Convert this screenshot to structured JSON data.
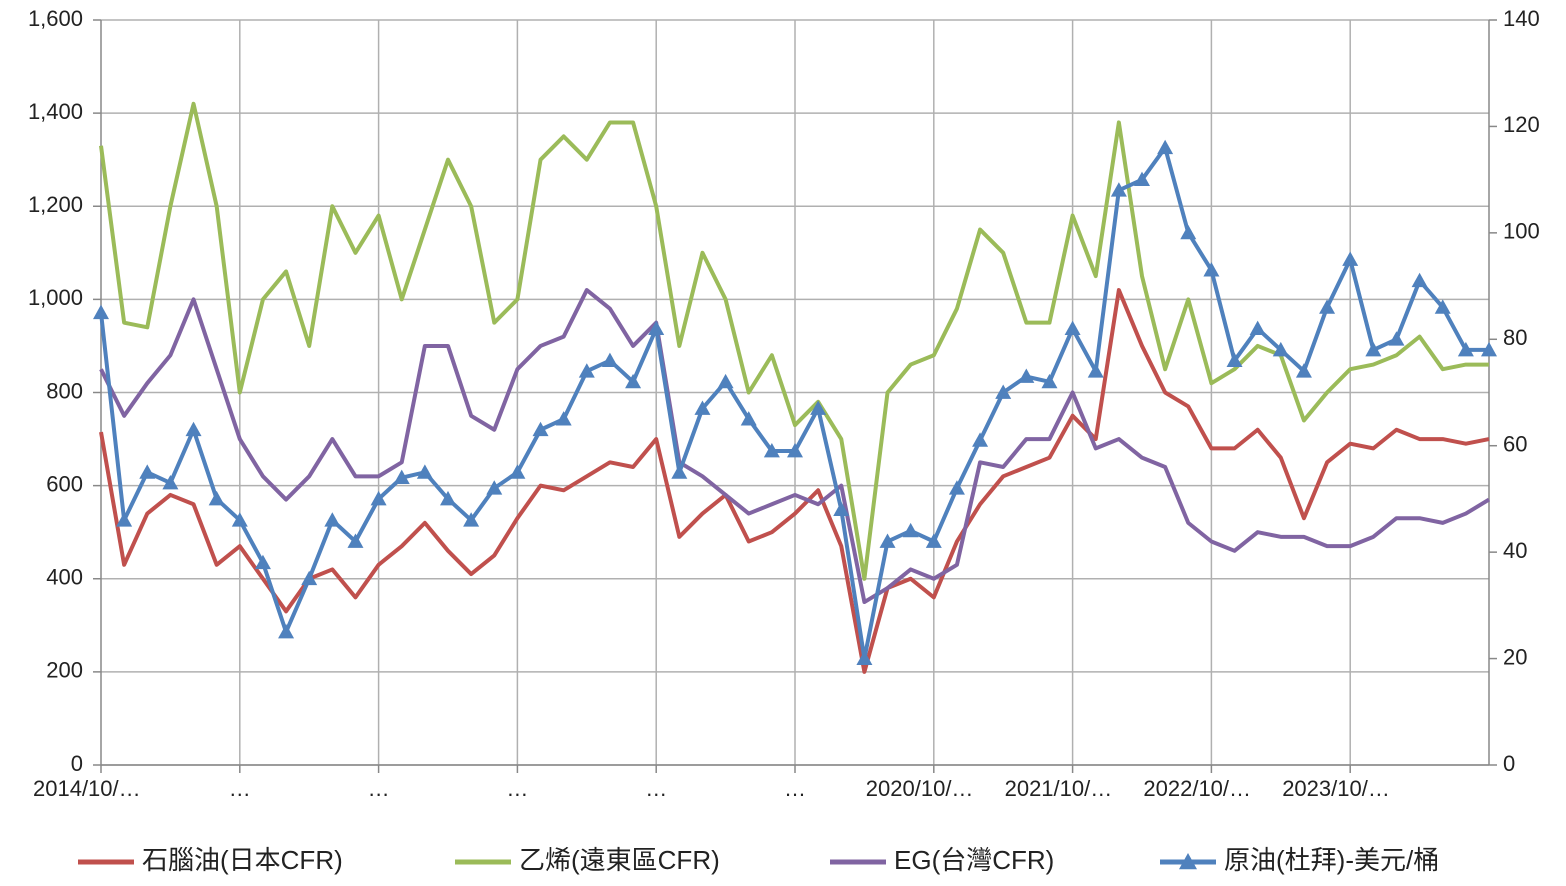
{
  "chart_data": {
    "type": "line",
    "categories": [
      "2014/10/…",
      null,
      null,
      null,
      null,
      null,
      "…",
      null,
      null,
      null,
      null,
      null,
      "…",
      null,
      null,
      null,
      null,
      null,
      "…",
      null,
      null,
      null,
      null,
      null,
      "…",
      null,
      null,
      null,
      null,
      null,
      "…",
      null,
      null,
      null,
      null,
      null,
      "2020/10/…",
      null,
      null,
      null,
      null,
      null,
      "2021/10/…",
      null,
      null,
      null,
      null,
      null,
      "2022/10/…",
      null,
      null,
      null,
      null,
      null,
      "2023/10/…",
      null,
      null,
      null,
      null,
      null,
      null
    ],
    "series": [
      {
        "name": "石腦油(日本CFR)",
        "color": "#c0504d",
        "values": [
          715,
          430,
          540,
          580,
          560,
          430,
          470,
          400,
          330,
          400,
          420,
          360,
          430,
          470,
          520,
          460,
          410,
          450,
          530,
          600,
          590,
          620,
          650,
          640,
          700,
          490,
          540,
          580,
          480,
          500,
          540,
          590,
          470,
          200,
          380,
          400,
          360,
          480,
          560,
          620,
          640,
          660,
          750,
          700,
          1020,
          900,
          800,
          770,
          680,
          680,
          720,
          660,
          530,
          650,
          690,
          680,
          720,
          700,
          700,
          690,
          700
        ]
      },
      {
        "name": "乙烯(遠東區CFR)",
        "color": "#9bbb59",
        "values": [
          1330,
          950,
          940,
          1200,
          1420,
          1200,
          800,
          1000,
          1060,
          900,
          1200,
          1100,
          1180,
          1000,
          1150,
          1300,
          1200,
          950,
          1000,
          1300,
          1350,
          1300,
          1380,
          1380,
          1200,
          900,
          1100,
          1000,
          800,
          880,
          730,
          780,
          700,
          400,
          800,
          860,
          880,
          980,
          1150,
          1100,
          950,
          950,
          1180,
          1050,
          1380,
          1050,
          850,
          1000,
          820,
          850,
          900,
          880,
          740,
          800,
          850,
          860,
          880,
          920,
          850,
          860,
          860
        ]
      },
      {
        "name": "EG(台灣CFR)",
        "color": "#8064a2",
        "values": [
          850,
          750,
          820,
          880,
          1000,
          850,
          700,
          620,
          570,
          620,
          700,
          620,
          620,
          650,
          900,
          900,
          750,
          720,
          850,
          900,
          920,
          1020,
          980,
          900,
          950,
          650,
          620,
          580,
          540,
          560,
          580,
          560,
          600,
          350,
          380,
          420,
          400,
          430,
          650,
          640,
          700,
          700,
          800,
          680,
          700,
          660,
          640,
          520,
          480,
          460,
          500,
          490,
          490,
          470,
          470,
          490,
          530,
          530,
          520,
          540,
          570
        ]
      },
      {
        "name": "原油(杜拜)-美元/桶",
        "color": "#4f81bd",
        "axis": "y2",
        "marker": "triangle",
        "values": [
          85,
          46,
          55,
          53,
          63,
          50,
          46,
          38,
          25,
          35,
          46,
          42,
          50,
          54,
          55,
          50,
          46,
          52,
          55,
          63,
          65,
          74,
          76,
          72,
          82,
          55,
          67,
          72,
          65,
          59,
          59,
          67,
          48,
          20,
          42,
          44,
          42,
          52,
          61,
          70,
          73,
          72,
          82,
          74,
          108,
          110,
          116,
          100,
          93,
          76,
          82,
          78,
          74,
          86,
          95,
          78,
          80,
          91,
          86,
          78,
          78
        ]
      }
    ],
    "ylim": [
      0,
      1600
    ],
    "yticks": [
      0,
      200,
      400,
      600,
      800,
      {
        "value": 1000,
        "label": "1,000"
      },
      {
        "value": 1200,
        "label": "1,200"
      },
      {
        "value": 1400,
        "label": "1,400"
      },
      {
        "value": 1600,
        "label": "1,600"
      }
    ],
    "y2lim": [
      0,
      140
    ],
    "y2ticks": [
      0,
      20,
      40,
      60,
      80,
      100,
      120,
      140
    ],
    "grid": true,
    "legend": "bottom"
  }
}
